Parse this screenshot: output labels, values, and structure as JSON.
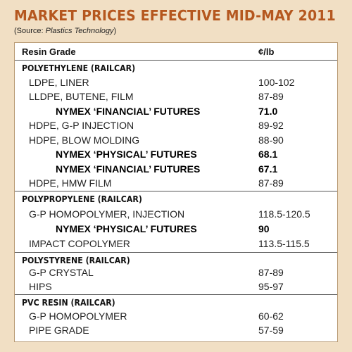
{
  "title": "MARKET PRICES EFFECTIVE MID-MAY 2011",
  "source_prefix": "(Source: ",
  "source_name": "Plastics Technology",
  "source_suffix": ")",
  "header": {
    "grade": "Resin Grade",
    "price": "¢/lb"
  },
  "sections": [
    {
      "title": "POLYETHYLENE (RAILCAR)",
      "rows": [
        {
          "name": "LDPE, LINER",
          "value": "100-102"
        },
        {
          "name": "LLDPE, BUTENE, FILM",
          "value": "87-89"
        },
        {
          "name": "NYMEX ‘FINANCIAL’ FUTURES",
          "value": "71.0"
        },
        {
          "name": "HDPE, G-P INJECTION",
          "value": "89-92"
        },
        {
          "name": "HDPE, BLOW MOLDING",
          "value": "88-90"
        },
        {
          "name": "NYMEX ‘PHYSICAL’ FUTURES",
          "value": "68.1"
        },
        {
          "name": "NYMEX ‘FINANCIAL’ FUTURES",
          "value": "67.1"
        },
        {
          "name": "HDPE, HMW FILM",
          "value": "87-89"
        }
      ]
    },
    {
      "title": "POLYPROPYLENE (RAILCAR)",
      "rows": [
        {
          "name": "G-P HOMOPOLYMER, INJECTION",
          "value": "118.5-120.5"
        },
        {
          "name": "NYMEX ‘PHYSICAL’ FUTURES",
          "value": "90"
        },
        {
          "name": "IMPACT COPOLYMER",
          "value": "113.5-115.5"
        }
      ]
    },
    {
      "title": "POLYSTYRENE (RAILCAR)",
      "rows": [
        {
          "name": "G-P CRYSTAL",
          "value": "87-89"
        },
        {
          "name": "HIPS",
          "value": "95-97"
        }
      ]
    },
    {
      "title": "PVC RESIN (RAILCAR)",
      "rows": [
        {
          "name": "G-P HOMOPOLYMER",
          "value": "60-62"
        },
        {
          "name": "PIPE GRADE",
          "value": "57-59"
        }
      ]
    }
  ]
}
